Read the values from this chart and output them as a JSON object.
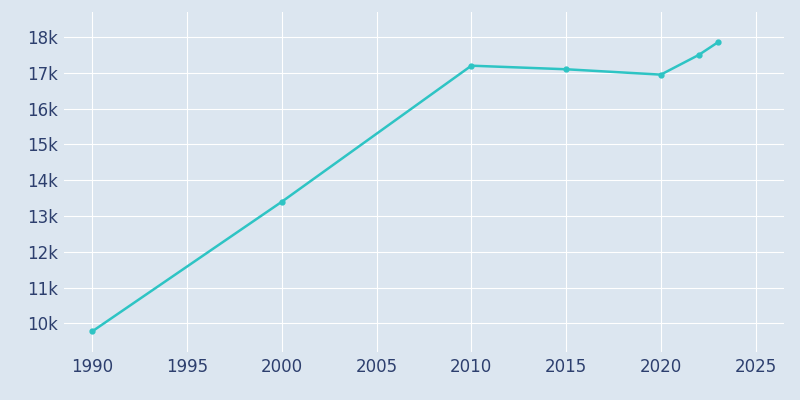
{
  "years": [
    1990,
    2000,
    2010,
    2015,
    2020,
    2022,
    2023
  ],
  "population": [
    9780,
    13400,
    17200,
    17100,
    16950,
    17500,
    17850
  ],
  "line_color": "#2ec4c4",
  "marker": "o",
  "marker_size": 3.5,
  "bg_color": "#dce6f0",
  "plot_bg_color": "#dce6f0",
  "grid_color": "#ffffff",
  "tick_color": "#2d3f6e",
  "xlim": [
    1988.5,
    2026.5
  ],
  "ylim": [
    9200,
    18700
  ],
  "xticks": [
    1990,
    1995,
    2000,
    2005,
    2010,
    2015,
    2020,
    2025
  ],
  "yticks": [
    10000,
    11000,
    12000,
    13000,
    14000,
    15000,
    16000,
    17000,
    18000
  ],
  "ytick_labels": [
    "10k",
    "11k",
    "12k",
    "13k",
    "14k",
    "15k",
    "16k",
    "17k",
    "18k"
  ],
  "linewidth": 1.8,
  "tick_fontsize": 12
}
